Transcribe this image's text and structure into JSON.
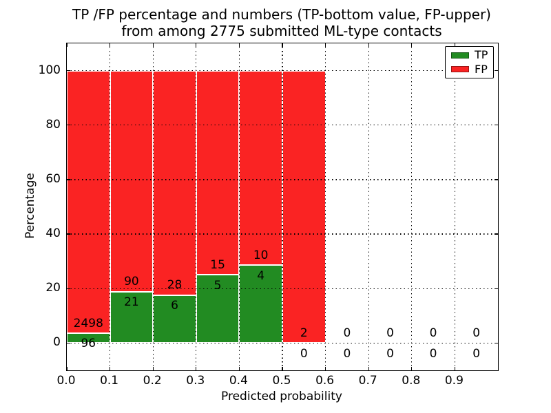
{
  "title": {
    "line1": "TP /FP percentage and numbers (TP-bottom value, FP-upper)",
    "line2": "from among 2775 submitted ML-type contacts"
  },
  "axes": {
    "xlabel": "Predicted probability",
    "ylabel": "Percentage",
    "xtick_labels": [
      "0.0",
      "0.1",
      "0.2",
      "0.3",
      "0.4",
      "0.5",
      "0.6",
      "0.7",
      "0.8",
      "0.9"
    ],
    "xticks": [
      0,
      0.1,
      0.2,
      0.3,
      0.4,
      0.5,
      0.6,
      0.7,
      0.8,
      0.9
    ],
    "xgrid": [
      0.1,
      0.2,
      0.3,
      0.4,
      0.5,
      0.6,
      0.7,
      0.8,
      0.9
    ],
    "ytick_labels": [
      "0",
      "20",
      "40",
      "60",
      "80",
      "100"
    ],
    "yticks": [
      0,
      20,
      40,
      60,
      80,
      100
    ],
    "xlim": [
      0.0,
      1.0
    ],
    "ylim": [
      -10,
      110
    ]
  },
  "legend": {
    "items": [
      {
        "label": "TP",
        "color": "#228b22"
      },
      {
        "label": "FP",
        "color": "#fa2323"
      }
    ]
  },
  "colors": {
    "tp": "#228b22",
    "fp": "#fa2323",
    "grid": "#000000",
    "background": "#ffffff",
    "text": "#000000"
  },
  "chart_data": {
    "type": "bar",
    "subtype": "stacked-percentage-histogram",
    "title": "TP /FP percentage and numbers (TP-bottom value, FP-upper) from among 2775 submitted ML-type contacts",
    "total_contacts": 2775,
    "xlabel": "Predicted probability",
    "ylabel": "Percentage",
    "xlim": [
      0.0,
      1.0
    ],
    "ylim": [
      -10,
      110
    ],
    "grid": true,
    "legend_position": "upper right",
    "bin_width": 0.1,
    "categories": [
      "0.0-0.1",
      "0.1-0.2",
      "0.2-0.3",
      "0.3-0.4",
      "0.4-0.5",
      "0.5-0.6",
      "0.6-0.7",
      "0.7-0.8",
      "0.8-0.9",
      "0.9-1.0"
    ],
    "series": [
      {
        "name": "TP",
        "color": "#228b22",
        "counts": [
          96,
          21,
          6,
          5,
          4,
          0,
          0,
          0,
          0,
          0
        ]
      },
      {
        "name": "FP",
        "color": "#fa2323",
        "counts": [
          2498,
          90,
          28,
          15,
          10,
          2,
          0,
          0,
          0,
          0
        ]
      }
    ],
    "bins": [
      {
        "range": "0.0-0.1",
        "x0": 0.0,
        "x1": 0.1,
        "tp": 96,
        "fp": 2498,
        "tp_percent": 3.7,
        "fp_percent": 96.3
      },
      {
        "range": "0.1-0.2",
        "x0": 0.1,
        "x1": 0.2,
        "tp": 21,
        "fp": 90,
        "tp_percent": 18.9,
        "fp_percent": 81.1
      },
      {
        "range": "0.2-0.3",
        "x0": 0.2,
        "x1": 0.3,
        "tp": 6,
        "fp": 28,
        "tp_percent": 17.6,
        "fp_percent": 82.4
      },
      {
        "range": "0.3-0.4",
        "x0": 0.3,
        "x1": 0.4,
        "tp": 5,
        "fp": 15,
        "tp_percent": 25.0,
        "fp_percent": 75.0
      },
      {
        "range": "0.4-0.5",
        "x0": 0.4,
        "x1": 0.5,
        "tp": 4,
        "fp": 10,
        "tp_percent": 28.6,
        "fp_percent": 71.4
      },
      {
        "range": "0.5-0.6",
        "x0": 0.5,
        "x1": 0.6,
        "tp": 0,
        "fp": 2,
        "tp_percent": 0.0,
        "fp_percent": 100.0
      },
      {
        "range": "0.6-0.7",
        "x0": 0.6,
        "x1": 0.7,
        "tp": 0,
        "fp": 0,
        "tp_percent": 0.0,
        "fp_percent": 0.0
      },
      {
        "range": "0.7-0.8",
        "x0": 0.7,
        "x1": 0.8,
        "tp": 0,
        "fp": 0,
        "tp_percent": 0.0,
        "fp_percent": 0.0
      },
      {
        "range": "0.8-0.9",
        "x0": 0.8,
        "x1": 0.9,
        "tp": 0,
        "fp": 0,
        "tp_percent": 0.0,
        "fp_percent": 0.0
      },
      {
        "range": "0.9-1.0",
        "x0": 0.9,
        "x1": 1.0,
        "tp": 0,
        "fp": 0,
        "tp_percent": 0.0,
        "fp_percent": 0.0
      }
    ]
  }
}
